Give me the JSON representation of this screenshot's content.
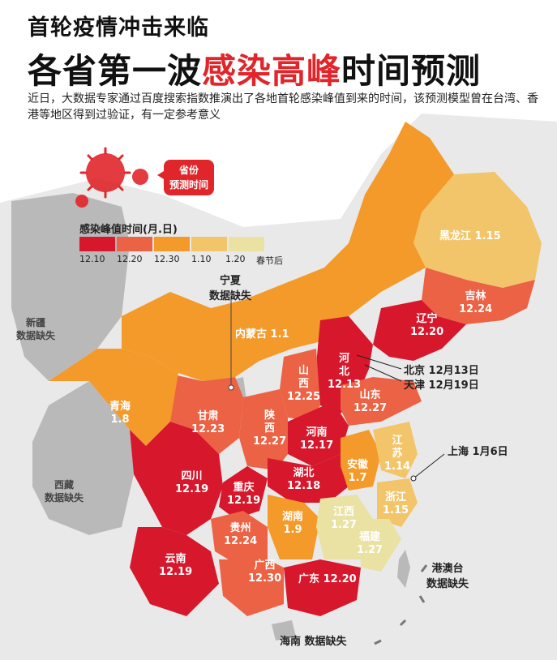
{
  "header": {
    "line1": "首轮疫情冲击来临",
    "line2_a": "各省第一波",
    "line2_b": "感染高峰",
    "line2_c": "时间预测",
    "intro": "近日，大数据专家通过百度搜索指数推演出了各地首轮感染峰值到来的时间，该预测模型曾在台湾、香港等地区得到过验证，有一定参考意义"
  },
  "badge": {
    "line1": "省份",
    "line2": "预测时间"
  },
  "legend": {
    "title": "感染峰值时间(月.日)",
    "colors": [
      "#d7172b",
      "#ec6244",
      "#f39a2a",
      "#f3c56b",
      "#e9e2a3"
    ],
    "labels": [
      "12.10",
      "12.20",
      "12.30",
      "1.10",
      "1.20",
      "春节后"
    ]
  },
  "colors": {
    "c1210": "#d7172b",
    "c1220": "#ec6244",
    "c1230": "#f39a2a",
    "c0110": "#f3c56b",
    "c0120": "#e9e2a3",
    "nodata": "#b9b9b9",
    "headline_accent": "#e0262b"
  },
  "provinces": {
    "heilongjiang": {
      "name": "黑龙江",
      "date": "1.15"
    },
    "jilin": {
      "name": "吉林",
      "date": "12.24"
    },
    "liaoning": {
      "name": "辽宁",
      "date": "12.20"
    },
    "neimenggu": {
      "name": "内蒙古",
      "date": "1.1"
    },
    "hebei_a": "河",
    "hebei_b": "北",
    "hebei_date": "12.13",
    "shanxi_a": "山",
    "shanxi_b": "西",
    "shanxi_date": "12.25",
    "shandong": {
      "name": "山东",
      "date": "12.27"
    },
    "henan": {
      "name": "河南",
      "date": "12.17"
    },
    "shaanxi_a": "陕",
    "shaanxi_b": "西",
    "shaanxi_date": "12.27",
    "gansu": {
      "name": "甘肃",
      "date": "12.23"
    },
    "qinghai": {
      "name": "青海",
      "date": "1.8"
    },
    "sichuan": {
      "name": "四川",
      "date": "12.19"
    },
    "chongqing": {
      "name": "重庆",
      "date": "12.19"
    },
    "hubei": {
      "name": "湖北",
      "date": "12.18"
    },
    "anhui": {
      "name": "安徽",
      "date": "1.7"
    },
    "jiangsu_a": "江",
    "jiangsu_b": "苏",
    "jiangsu_date": "1.14",
    "zhejiang": {
      "name": "浙江",
      "date": "1.15"
    },
    "hunan": {
      "name": "湖南",
      "date": "1.9"
    },
    "jiangxi": {
      "name": "江西",
      "date": "1.27"
    },
    "fujian": {
      "name": "福建",
      "date": "1.27"
    },
    "guizhou": {
      "name": "贵州",
      "date": "12.24"
    },
    "yunnan": {
      "name": "云南",
      "date": "12.19"
    },
    "guangxi": {
      "name": "广西",
      "date": "12.30"
    },
    "guangdong": {
      "name": "广东",
      "date": "12.20"
    }
  },
  "callouts": {
    "ningxia_a": "宁夏",
    "ningxia_b": "数据缺失",
    "beijing": "北京 12月13日",
    "tianjin": "天津 12月19日",
    "shanghai": "上海 1月6日",
    "gat_a": "港澳台",
    "gat_b": "数据缺失",
    "hainan": "海南  数据缺失",
    "xinjiang_a": "新疆",
    "xinjiang_b": "数据缺失",
    "xizang_a": "西藏",
    "xizang_b": "数据缺失"
  }
}
